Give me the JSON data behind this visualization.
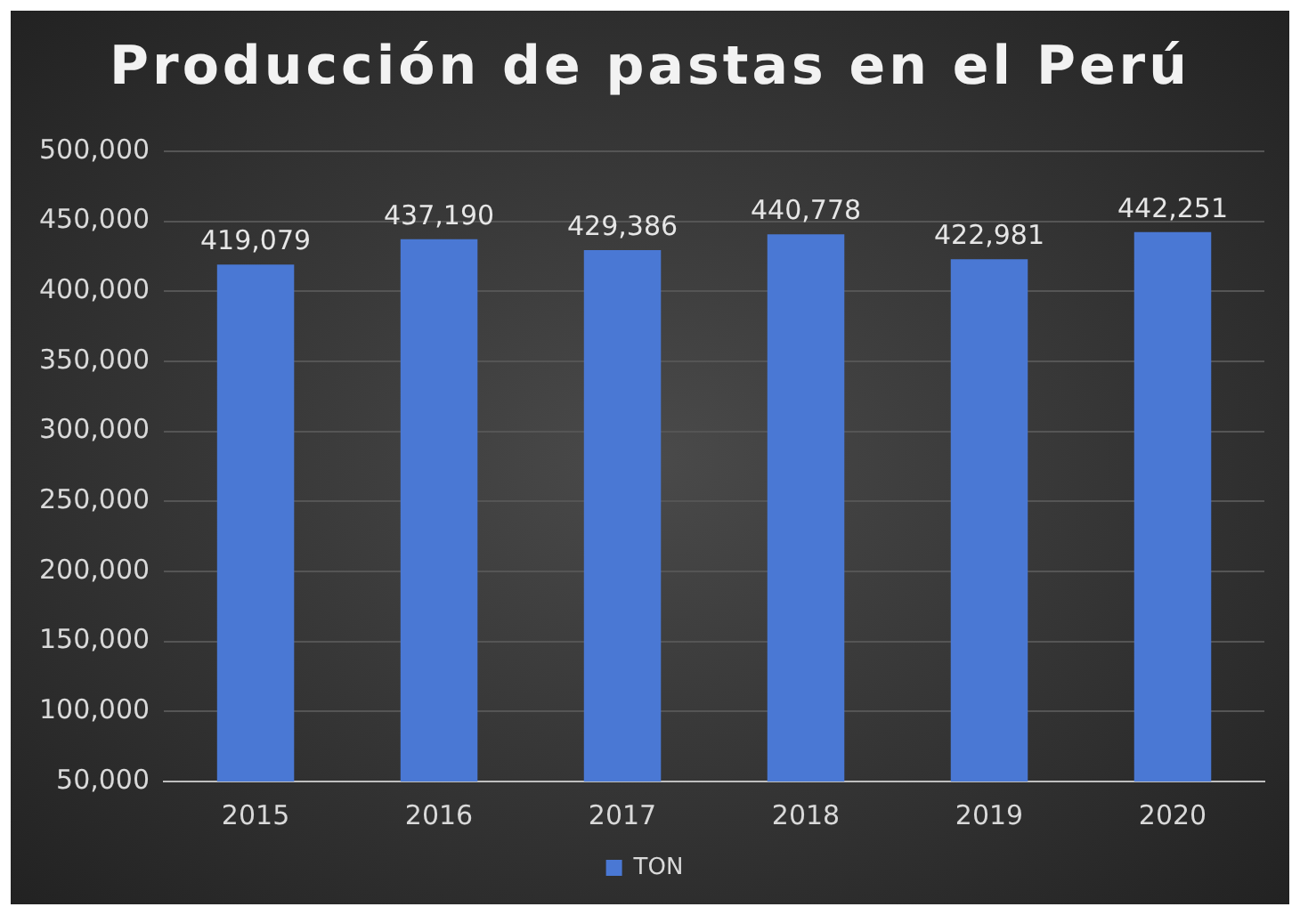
{
  "chart_data": {
    "type": "bar",
    "title": "Producción de pastas en el Perú",
    "categories": [
      "2015",
      "2016",
      "2017",
      "2018",
      "2019",
      "2020"
    ],
    "series": [
      {
        "name": "TON",
        "color": "#4a78d4",
        "values": [
          419079,
          437190,
          429386,
          440778,
          422981,
          442251
        ],
        "value_labels": [
          "419,079",
          "437,190",
          "429,386",
          "440,778",
          "422,981",
          "442,251"
        ]
      }
    ],
    "ylim": [
      50000,
      500000
    ],
    "yticks": [
      {
        "value": 50000,
        "label": "50,000"
      },
      {
        "value": 100000,
        "label": "100,000"
      },
      {
        "value": 150000,
        "label": "150,000"
      },
      {
        "value": 200000,
        "label": "200,000"
      },
      {
        "value": 250000,
        "label": "250,000"
      },
      {
        "value": 300000,
        "label": "300,000"
      },
      {
        "value": 350000,
        "label": "350,000"
      },
      {
        "value": 400000,
        "label": "400,000"
      },
      {
        "value": 450000,
        "label": "450,000"
      },
      {
        "value": 500000,
        "label": "500,000"
      }
    ],
    "grid": "y",
    "legend": "bottom"
  }
}
